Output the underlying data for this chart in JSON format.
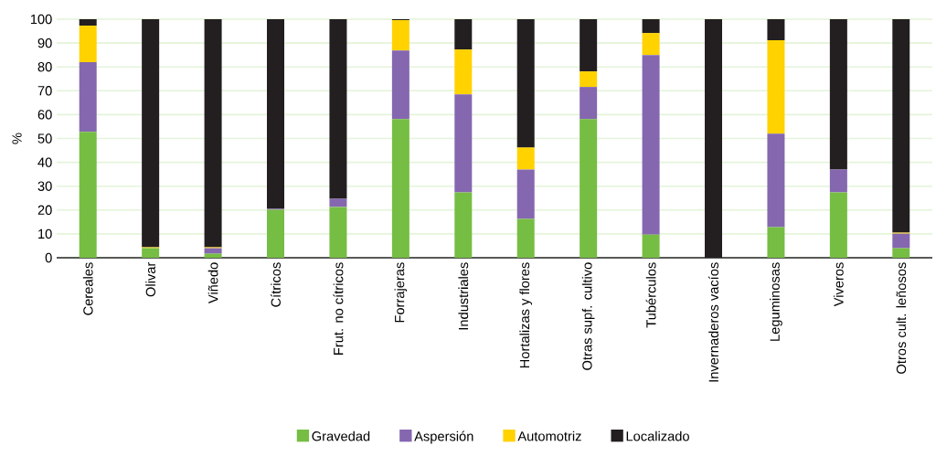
{
  "chart_data": {
    "type": "bar",
    "stacked": true,
    "ylabel": "%",
    "categories": [
      "Cereales",
      "Olivar",
      "Viñedo",
      "Cítricos",
      "Frut. no cítricos",
      "Forrajeras",
      "Industriales",
      "Hortalizas y flores",
      "Otras supf. cultivo",
      "Tubérculos",
      "Invernaderos vacíos",
      "Leguminosas",
      "Viveros",
      "Otros cult. leñosos"
    ],
    "series": [
      {
        "name": "Gravedad",
        "color": "#76bd43",
        "values": [
          52.8,
          4,
          1.7,
          20.1,
          21.3,
          58.1,
          27.4,
          16.3,
          58.1,
          9.7,
          0,
          12.8,
          27.4,
          4
        ]
      },
      {
        "name": "Aspersión",
        "color": "#8567b0",
        "values": [
          29.2,
          0,
          2.3,
          0.4,
          3.4,
          28.8,
          41.1,
          20.7,
          13.5,
          75.3,
          0,
          39.2,
          9.6,
          6.1
        ]
      },
      {
        "name": "Automotriz",
        "color": "#ffd200",
        "values": [
          15.3,
          0.4,
          0.4,
          0,
          0,
          12.7,
          18.8,
          9.2,
          6.5,
          9.2,
          0,
          39.2,
          0,
          0.4
        ]
      },
      {
        "name": "Localizado",
        "color": "#231f20",
        "values": [
          2.7,
          95.6,
          95.6,
          79.5,
          75.3,
          0.4,
          12.7,
          53.8,
          21.9,
          5.8,
          100,
          8.8,
          63,
          89.5
        ]
      }
    ],
    "ylim": [
      0,
      100
    ],
    "yticks": [
      0,
      10,
      20,
      30,
      40,
      50,
      60,
      70,
      80,
      90,
      100
    ],
    "grid": "y",
    "legend": "bottom"
  }
}
